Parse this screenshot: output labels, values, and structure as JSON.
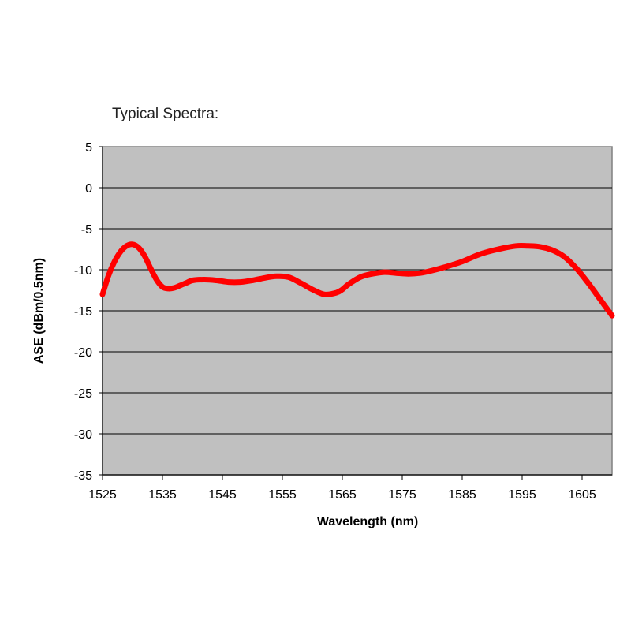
{
  "chart_data": {
    "type": "line",
    "title": "Typical Spectra:",
    "xlabel": "Wavelength (nm)",
    "ylabel": "ASE (dBm/0.5nm)",
    "xlim": [
      1525,
      1610
    ],
    "ylim": [
      -35,
      5
    ],
    "xticks": [
      1525,
      1535,
      1545,
      1555,
      1565,
      1575,
      1585,
      1595,
      1605
    ],
    "yticks": [
      5,
      0,
      -5,
      -10,
      -15,
      -20,
      -25,
      -30,
      -35
    ],
    "grid": "horizontal",
    "plot_background": "#c0c0c0",
    "series": [
      {
        "color": "#ff0000",
        "x": [
          1525,
          1526,
          1527,
          1528,
          1529,
          1530,
          1531,
          1532,
          1533,
          1534,
          1535,
          1536,
          1537,
          1538,
          1539,
          1540,
          1542,
          1544,
          1546,
          1548,
          1550,
          1552,
          1554,
          1556,
          1558,
          1560,
          1562,
          1564,
          1565,
          1566,
          1568,
          1570,
          1572,
          1574,
          1576,
          1578,
          1580,
          1582,
          1585,
          1588,
          1591,
          1594,
          1596,
          1598,
          1600,
          1602,
          1604,
          1606,
          1608,
          1610
        ],
        "y": [
          -13.0,
          -10.7,
          -9.0,
          -7.8,
          -7.1,
          -6.9,
          -7.3,
          -8.3,
          -9.8,
          -11.2,
          -12.1,
          -12.3,
          -12.2,
          -11.9,
          -11.6,
          -11.3,
          -11.2,
          -11.3,
          -11.5,
          -11.5,
          -11.3,
          -11.0,
          -10.8,
          -10.9,
          -11.6,
          -12.4,
          -13.0,
          -12.8,
          -12.4,
          -11.8,
          -10.9,
          -10.5,
          -10.3,
          -10.4,
          -10.5,
          -10.4,
          -10.1,
          -9.7,
          -9.0,
          -8.1,
          -7.5,
          -7.1,
          -7.1,
          -7.2,
          -7.6,
          -8.4,
          -9.8,
          -11.6,
          -13.6,
          -15.6
        ]
      }
    ]
  }
}
